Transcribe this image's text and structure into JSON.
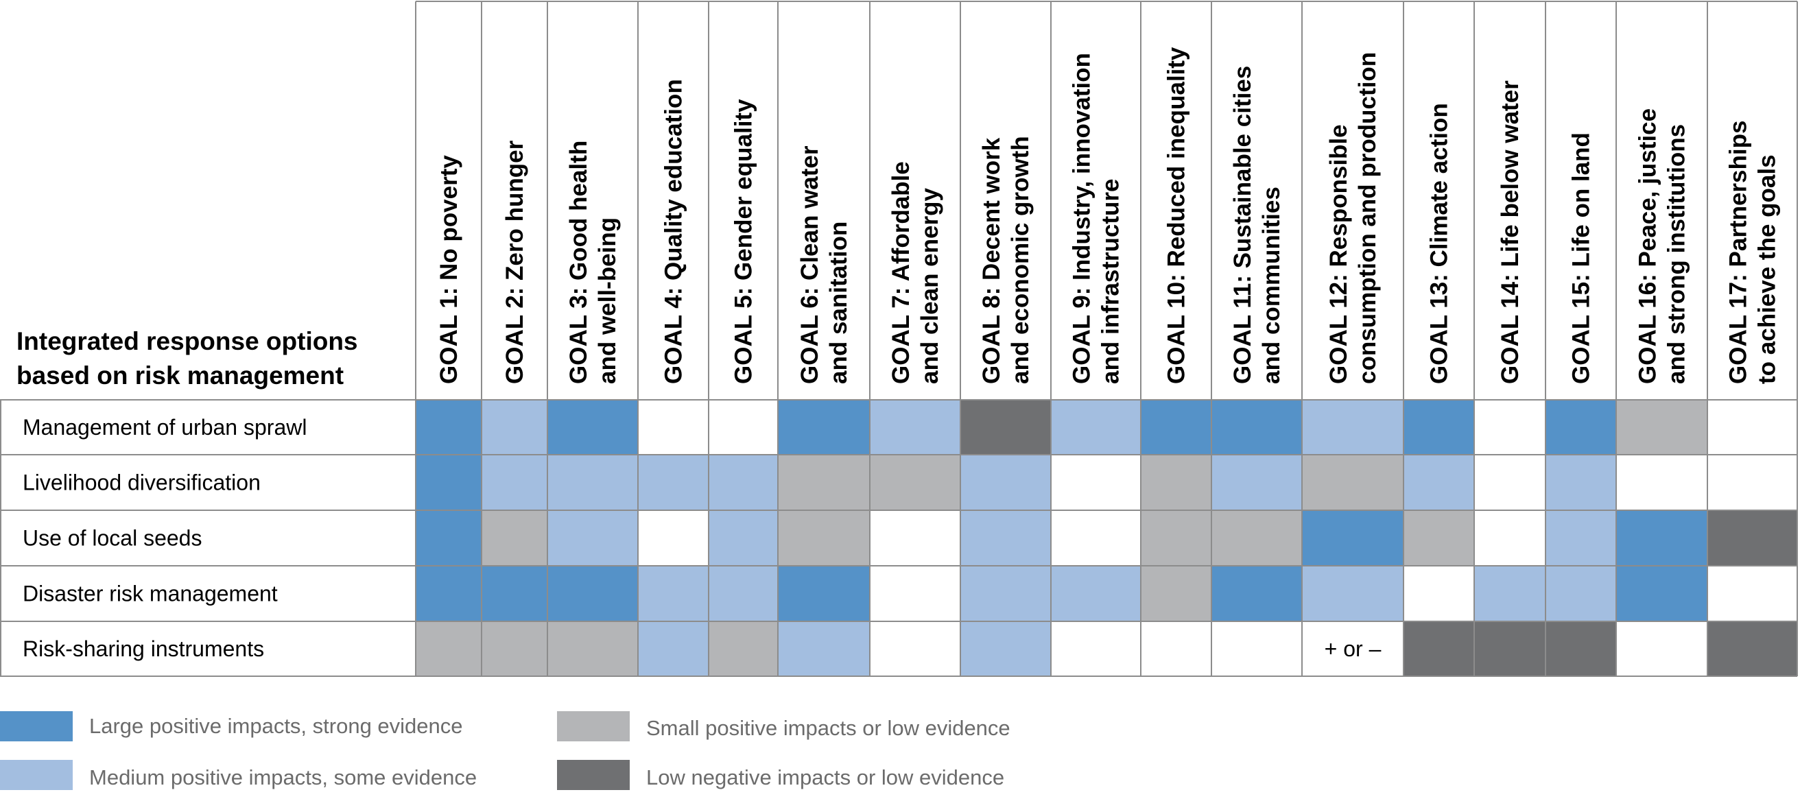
{
  "colors": {
    "large_positive": "#5592c8",
    "medium_positive": "#a3bee0",
    "small_positive": "#b4b5b7",
    "low_negative": "#6f7072",
    "none": "#ffffff",
    "grid": "#8c8c8c"
  },
  "chart_data": {
    "type": "heatmap",
    "title": "",
    "corner_title": [
      "Integrated response options",
      "based on risk management"
    ],
    "columns": [
      [
        "GOAL 1: No poverty"
      ],
      [
        "GOAL 2: Zero hunger"
      ],
      [
        "GOAL 3: Good health",
        "and well-being"
      ],
      [
        "GOAL 4: Quality education"
      ],
      [
        "GOAL 5: Gender equality"
      ],
      [
        "GOAL 6: Clean water",
        "and sanitation"
      ],
      [
        "GOAL 7: Affordable",
        "and clean energy"
      ],
      [
        "GOAL 8: Decent work",
        "and economic growth"
      ],
      [
        "GOAL 9: Industry, innovation",
        "and infrastructure"
      ],
      [
        "GOAL 10: Reduced inequality"
      ],
      [
        "GOAL 11: Sustainable cities",
        "and communities"
      ],
      [
        "GOAL 12: Responsible",
        "consumption and production"
      ],
      [
        "GOAL 13: Climate action"
      ],
      [
        "GOAL 14: Life below water"
      ],
      [
        "GOAL 15: Life on land"
      ],
      [
        "GOAL 16: Peace, justice",
        "and strong institutions"
      ],
      [
        "GOAL 17: Partnerships",
        "to achieve the goals"
      ]
    ],
    "rows": [
      {
        "label": "Management of urban sprawl",
        "cells": [
          "large_positive",
          "medium_positive",
          "large_positive",
          "none",
          "none",
          "large_positive",
          "medium_positive",
          "low_negative",
          "medium_positive",
          "large_positive",
          "large_positive",
          "medium_positive",
          "large_positive",
          "none",
          "large_positive",
          "small_positive",
          "none"
        ]
      },
      {
        "label": "Livelihood diversification",
        "cells": [
          "large_positive",
          "medium_positive",
          "medium_positive",
          "medium_positive",
          "medium_positive",
          "small_positive",
          "small_positive",
          "medium_positive",
          "none",
          "small_positive",
          "medium_positive",
          "small_positive",
          "medium_positive",
          "none",
          "medium_positive",
          "none",
          "none"
        ]
      },
      {
        "label": "Use of local seeds",
        "cells": [
          "large_positive",
          "small_positive",
          "medium_positive",
          "none",
          "medium_positive",
          "small_positive",
          "none",
          "medium_positive",
          "none",
          "small_positive",
          "small_positive",
          "large_positive",
          "small_positive",
          "none",
          "medium_positive",
          "large_positive",
          "low_negative"
        ]
      },
      {
        "label": "Disaster risk management",
        "cells": [
          "large_positive",
          "large_positive",
          "large_positive",
          "medium_positive",
          "medium_positive",
          "large_positive",
          "none",
          "medium_positive",
          "medium_positive",
          "small_positive",
          "large_positive",
          "medium_positive",
          "none",
          "medium_positive",
          "medium_positive",
          "large_positive",
          "none"
        ]
      },
      {
        "label": "Risk-sharing instruments",
        "cells": [
          "small_positive",
          "small_positive",
          "small_positive",
          "medium_positive",
          "small_positive",
          "medium_positive",
          "none",
          "medium_positive",
          "none",
          "none",
          "none",
          "none",
          "low_negative",
          "low_negative",
          "low_negative",
          "none",
          "low_negative"
        ]
      }
    ],
    "annotations": [
      {
        "row": 4,
        "col": 11,
        "text": "+ or –"
      }
    ],
    "legend": [
      {
        "key": "large_positive",
        "label": "Large positive impacts, strong evidence"
      },
      {
        "key": "medium_positive",
        "label": "Medium positive impacts, some evidence"
      },
      {
        "key": "small_positive",
        "label": "Small positive impacts or low evidence"
      },
      {
        "key": "low_negative",
        "label": "Low negative impacts or low evidence"
      }
    ],
    "legend_placement": "bottom-left"
  }
}
